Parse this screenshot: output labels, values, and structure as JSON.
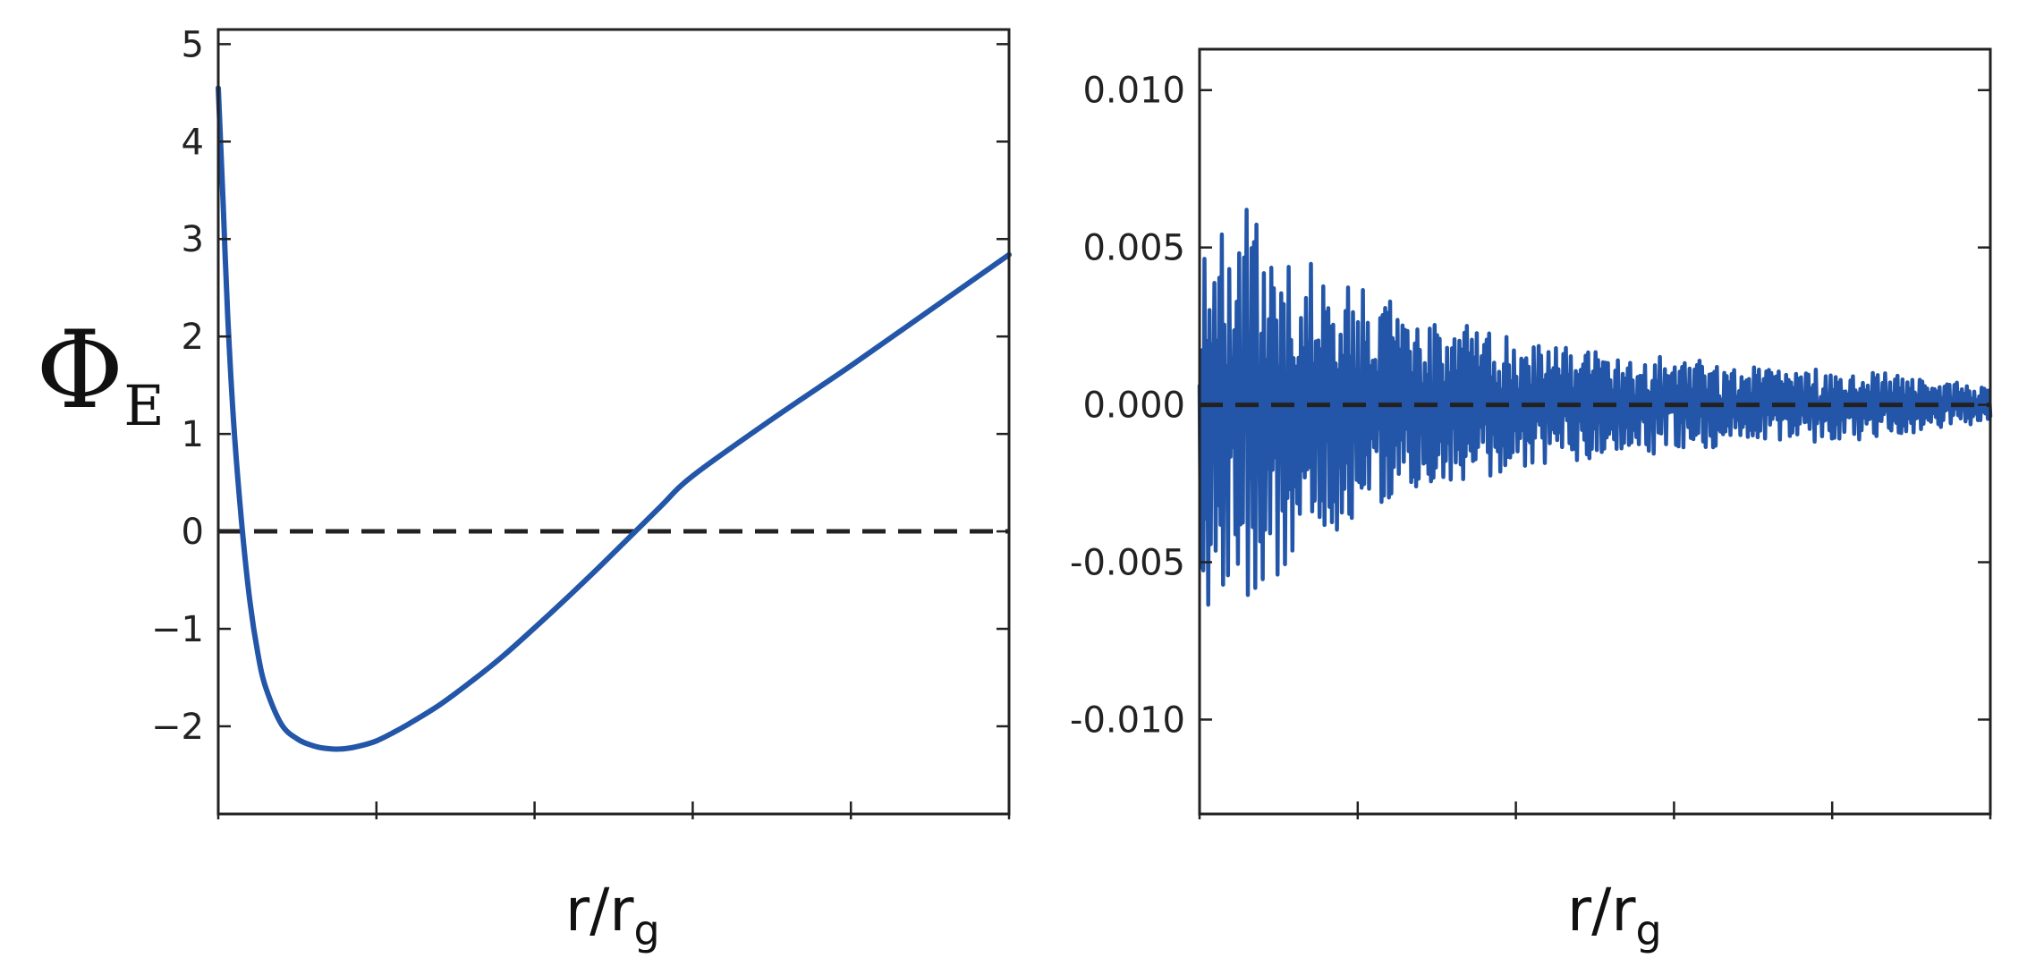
{
  "colors": {
    "series": "#2356a8",
    "zero_line": "#222222",
    "axes": "#222222"
  },
  "chart_data": [
    {
      "type": "line",
      "title": "",
      "ylabel_main": "Φ",
      "ylabel_sub": "E",
      "xlabel_main": "r/r",
      "xlabel_sub": "g",
      "xlim": [
        0,
        5
      ],
      "ylim": [
        -2.9,
        5.15
      ],
      "yticks": [
        -2,
        -1,
        0,
        1,
        2,
        3,
        4,
        5
      ],
      "ytick_labels": [
        "−2",
        "−1",
        "0",
        "1",
        "2",
        "3",
        "4",
        "5"
      ],
      "xticks": [
        0,
        1,
        2,
        3,
        4,
        5
      ],
      "xtick_labels": [
        "",
        "",
        "",
        "",
        "",
        ""
      ],
      "zero_line": 0,
      "grid": false,
      "series": [
        {
          "x": [
            0.0,
            0.03,
            0.06,
            0.1,
            0.15,
            0.2,
            0.25,
            0.3,
            0.4,
            0.5,
            0.6,
            0.7,
            0.8,
            0.9,
            1.0,
            1.1,
            1.2,
            1.4,
            1.6,
            1.8,
            2.0,
            2.2,
            2.4,
            2.6,
            2.8,
            3.0,
            3.5,
            4.0,
            4.5,
            5.0
          ],
          "y": [
            4.55,
            3.4,
            2.2,
            1.05,
            0.05,
            -0.72,
            -1.25,
            -1.6,
            -1.98,
            -2.13,
            -2.2,
            -2.23,
            -2.23,
            -2.2,
            -2.15,
            -2.07,
            -1.98,
            -1.78,
            -1.54,
            -1.28,
            -0.99,
            -0.69,
            -0.38,
            -0.06,
            0.26,
            0.57,
            1.15,
            1.7,
            2.27,
            2.84
          ]
        }
      ]
    },
    {
      "type": "line",
      "title": "",
      "xlabel_main": "r/r",
      "xlabel_sub": "g",
      "xlim": [
        0,
        5
      ],
      "ylim": [
        -0.013,
        0.0113
      ],
      "yticks": [
        -0.01,
        -0.005,
        0.0,
        0.005,
        0.01
      ],
      "ytick_labels": [
        "-0.010",
        "-0.005",
        "0.000",
        "0.005",
        "0.010"
      ],
      "xticks": [
        0,
        1,
        2,
        3,
        4,
        5
      ],
      "xtick_labels": [
        "",
        "",
        "",
        "",
        "",
        ""
      ],
      "zero_line": 0,
      "grid": false,
      "noise": {
        "description_values": "residual oscillation about zero; amplitude envelope by r/rg",
        "envelope_x": [
          0.0,
          0.3,
          0.6,
          1.0,
          1.5,
          2.0,
          2.5,
          3.0,
          3.5,
          4.0,
          4.5,
          5.0
        ],
        "envelope_y": [
          0.0062,
          0.0058,
          0.0048,
          0.0036,
          0.0026,
          0.0021,
          0.0016,
          0.0014,
          0.0012,
          0.0011,
          0.0009,
          0.0005
        ],
        "points": 640,
        "seed": 17
      }
    }
  ]
}
